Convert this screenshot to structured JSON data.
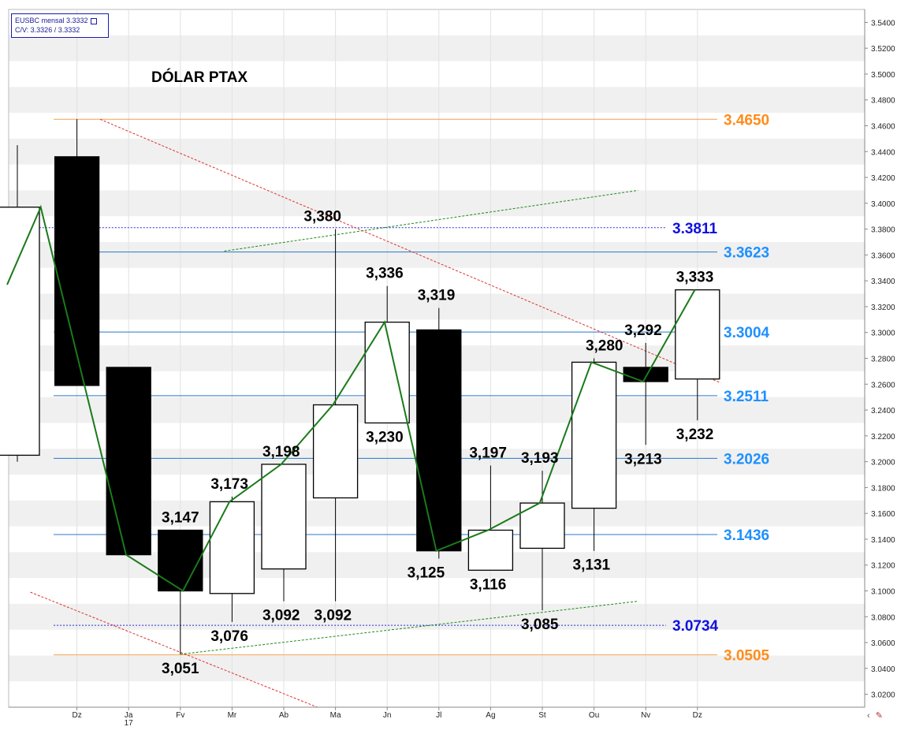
{
  "legend": {
    "line1": "EUSBC mensal 3.3332",
    "line2": "C/V: 3.3326 / 3.3332"
  },
  "chart_data": {
    "type": "candlestick",
    "title": "DÓLAR PTAX",
    "ylim": [
      3.01,
      3.55
    ],
    "y_ticks": [
      "3.0200",
      "3.0400",
      "3.0600",
      "3.0800",
      "3.1000",
      "3.1200",
      "3.1400",
      "3.1600",
      "3.1800",
      "3.2000",
      "3.2200",
      "3.2400",
      "3.2600",
      "3.2800",
      "3.3000",
      "3.3200",
      "3.3400",
      "3.3600",
      "3.3800",
      "3.4000",
      "3.4200",
      "3.4400",
      "3.4600",
      "3.4800",
      "3.5000",
      "3.5200",
      "3.5400"
    ],
    "x_ticks": [
      {
        "i": 1,
        "label": "Dz",
        "sub": ""
      },
      {
        "i": 2,
        "label": "Ja",
        "sub": "17"
      },
      {
        "i": 3,
        "label": "Fv",
        "sub": ""
      },
      {
        "i": 4,
        "label": "Mr",
        "sub": ""
      },
      {
        "i": 5,
        "label": "Ab",
        "sub": ""
      },
      {
        "i": 6,
        "label": "Ma",
        "sub": ""
      },
      {
        "i": 7,
        "label": "Jn",
        "sub": ""
      },
      {
        "i": 8,
        "label": "Jl",
        "sub": ""
      },
      {
        "i": 9,
        "label": "Ag",
        "sub": ""
      },
      {
        "i": 10,
        "label": "St",
        "sub": ""
      },
      {
        "i": 11,
        "label": "Ou",
        "sub": ""
      },
      {
        "i": 12,
        "label": "Nv",
        "sub": ""
      },
      {
        "i": 13,
        "label": "Dz",
        "sub": ""
      }
    ],
    "candles": [
      {
        "i": 0,
        "open": 3.205,
        "close": 3.397,
        "high": 3.445,
        "low": 3.2
      },
      {
        "i": 1,
        "open": 3.436,
        "close": 3.259,
        "high": 3.465,
        "low": 3.259
      },
      {
        "i": 2,
        "open": 3.273,
        "close": 3.128,
        "high": 3.273,
        "low": 3.128
      },
      {
        "i": 3,
        "open": 3.147,
        "close": 3.1,
        "high": 3.147,
        "low": 3.051
      },
      {
        "i": 4,
        "open": 3.098,
        "close": 3.169,
        "high": 3.173,
        "low": 3.076
      },
      {
        "i": 5,
        "open": 3.117,
        "close": 3.198,
        "high": 3.198,
        "low": 3.092
      },
      {
        "i": 6,
        "open": 3.172,
        "close": 3.244,
        "high": 3.38,
        "low": 3.092
      },
      {
        "i": 7,
        "open": 3.23,
        "close": 3.308,
        "high": 3.336,
        "low": 3.23
      },
      {
        "i": 8,
        "open": 3.302,
        "close": 3.131,
        "high": 3.319,
        "low": 3.125
      },
      {
        "i": 9,
        "open": 3.116,
        "close": 3.147,
        "high": 3.197,
        "low": 3.116
      },
      {
        "i": 10,
        "open": 3.133,
        "close": 3.168,
        "high": 3.193,
        "low": 3.085
      },
      {
        "i": 11,
        "open": 3.164,
        "close": 3.277,
        "high": 3.28,
        "low": 3.131
      },
      {
        "i": 12,
        "open": 3.273,
        "close": 3.262,
        "high": 3.292,
        "low": 3.213
      },
      {
        "i": 13,
        "open": 3.264,
        "close": 3.333,
        "high": 3.333,
        "low": 3.232
      }
    ],
    "moving_average": [
      {
        "i": -0.35,
        "v": 3.337
      },
      {
        "i": 0.3,
        "v": 3.397
      },
      {
        "i": 1.95,
        "v": 3.128
      },
      {
        "i": 3.05,
        "v": 3.1
      },
      {
        "i": 3.95,
        "v": 3.169
      },
      {
        "i": 4.95,
        "v": 3.198
      },
      {
        "i": 5.95,
        "v": 3.244
      },
      {
        "i": 6.95,
        "v": 3.308
      },
      {
        "i": 7.95,
        "v": 3.131
      },
      {
        "i": 8.95,
        "v": 3.147
      },
      {
        "i": 9.95,
        "v": 3.168
      },
      {
        "i": 10.95,
        "v": 3.277
      },
      {
        "i": 11.95,
        "v": 3.262
      },
      {
        "i": 12.95,
        "v": 3.333
      }
    ],
    "levels": [
      {
        "value": 3.465,
        "label": "3.4650",
        "color": "#ff8c1a",
        "line": "#f0a050",
        "dash": false,
        "i_start": 0.55
      },
      {
        "value": 3.3811,
        "label": "3.3811",
        "color": "#1010e0",
        "line": "#2a2ad8",
        "dash": true,
        "i_start": -0.4
      },
      {
        "value": 3.3623,
        "label": "3.3623",
        "color": "#1e90ff",
        "line": "#2a78c8",
        "dash": false,
        "i_start": 0.55
      },
      {
        "value": 3.3004,
        "label": "3.3004",
        "color": "#1e90ff",
        "line": "#2a78c8",
        "dash": false,
        "i_start": 0.55
      },
      {
        "value": 3.2511,
        "label": "3.2511",
        "color": "#1e90ff",
        "line": "#2a78c8",
        "dash": false,
        "i_start": 0.55
      },
      {
        "value": 3.2026,
        "label": "3.2026",
        "color": "#1e90ff",
        "line": "#2a78c8",
        "dash": false,
        "i_start": 0.55
      },
      {
        "value": 3.1436,
        "label": "3.1436",
        "color": "#1e90ff",
        "line": "#2a78c8",
        "dash": false,
        "i_start": 0.55
      },
      {
        "value": 3.0734,
        "label": "3.0734",
        "color": "#1010e0",
        "line": "#2a2ad8",
        "dash": true,
        "i_start": 0.55
      },
      {
        "value": 3.0505,
        "label": "3.0505",
        "color": "#ff8c1a",
        "line": "#f0a050",
        "dash": false,
        "i_start": 0.55
      }
    ],
    "trendlines": [
      {
        "name": "red-downtrend-upper",
        "color": "#e03030",
        "i1": 1.45,
        "v1": 3.465,
        "i2": 13.45,
        "v2": 3.261
      },
      {
        "name": "red-downtrend-lower",
        "color": "#e03030",
        "i1": 0.1,
        "v1": 3.099,
        "i2": 5.65,
        "v2": 3.01
      },
      {
        "name": "green-channel-upper",
        "color": "#1a8a1a",
        "i1": 3.85,
        "v1": 3.363,
        "i2": 11.85,
        "v2": 3.41
      },
      {
        "name": "green-channel-lower",
        "color": "#1a8a1a",
        "i1": 3.0,
        "v1": 3.051,
        "i2": 11.85,
        "v2": 3.092
      }
    ],
    "annotations": [
      {
        "i": 1.55,
        "v": 3.38,
        "text": "3,380",
        "pos": "above-left-of",
        "ref_i": 5.75
      },
      {
        "i": 6.95,
        "v": 3.336,
        "text": "3,336",
        "pos": "above"
      },
      {
        "i": 7.95,
        "v": 3.319,
        "text": "3,319",
        "pos": "above"
      },
      {
        "i": 11.95,
        "v": 3.292,
        "text": "3,292",
        "pos": "above"
      },
      {
        "i": 11.2,
        "v": 3.28,
        "text": "3,280",
        "pos": "above"
      },
      {
        "i": 12.95,
        "v": 3.333,
        "text": "3,333",
        "pos": "above"
      },
      {
        "i": 6.95,
        "v": 3.23,
        "text": "3,230",
        "pos": "below"
      },
      {
        "i": 3.0,
        "v": 3.147,
        "text": "3,147",
        "pos": "above"
      },
      {
        "i": 3.95,
        "v": 3.173,
        "text": "3,173",
        "pos": "above"
      },
      {
        "i": 4.95,
        "v": 3.198,
        "text": "3,198",
        "pos": "above"
      },
      {
        "i": 8.95,
        "v": 3.197,
        "text": "3,197",
        "pos": "above"
      },
      {
        "i": 9.95,
        "v": 3.193,
        "text": "3,193",
        "pos": "above"
      },
      {
        "i": 12.95,
        "v": 3.232,
        "text": "3,232",
        "pos": "below"
      },
      {
        "i": 11.95,
        "v": 3.213,
        "text": "3,213",
        "pos": "below"
      },
      {
        "i": 7.75,
        "v": 3.125,
        "text": "3,125",
        "pos": "below"
      },
      {
        "i": 10.95,
        "v": 3.131,
        "text": "3,131",
        "pos": "below"
      },
      {
        "i": 8.95,
        "v": 3.116,
        "text": "3,116",
        "pos": "below"
      },
      {
        "i": 4.95,
        "v": 3.092,
        "text": "3,092",
        "pos": "below"
      },
      {
        "i": 5.95,
        "v": 3.092,
        "text": "3,092",
        "pos": "below"
      },
      {
        "i": 9.95,
        "v": 3.085,
        "text": "3,085",
        "pos": "below"
      },
      {
        "i": 3.95,
        "v": 3.076,
        "text": "3,076",
        "pos": "below"
      },
      {
        "i": 3.0,
        "v": 3.051,
        "text": "3,051",
        "pos": "below"
      }
    ],
    "colors": {
      "bull_fill": "#ffffff",
      "bear_fill": "#000000",
      "ma": "#1a7a1a",
      "band": "#f0f0f0",
      "axis_text": "#222222"
    }
  }
}
